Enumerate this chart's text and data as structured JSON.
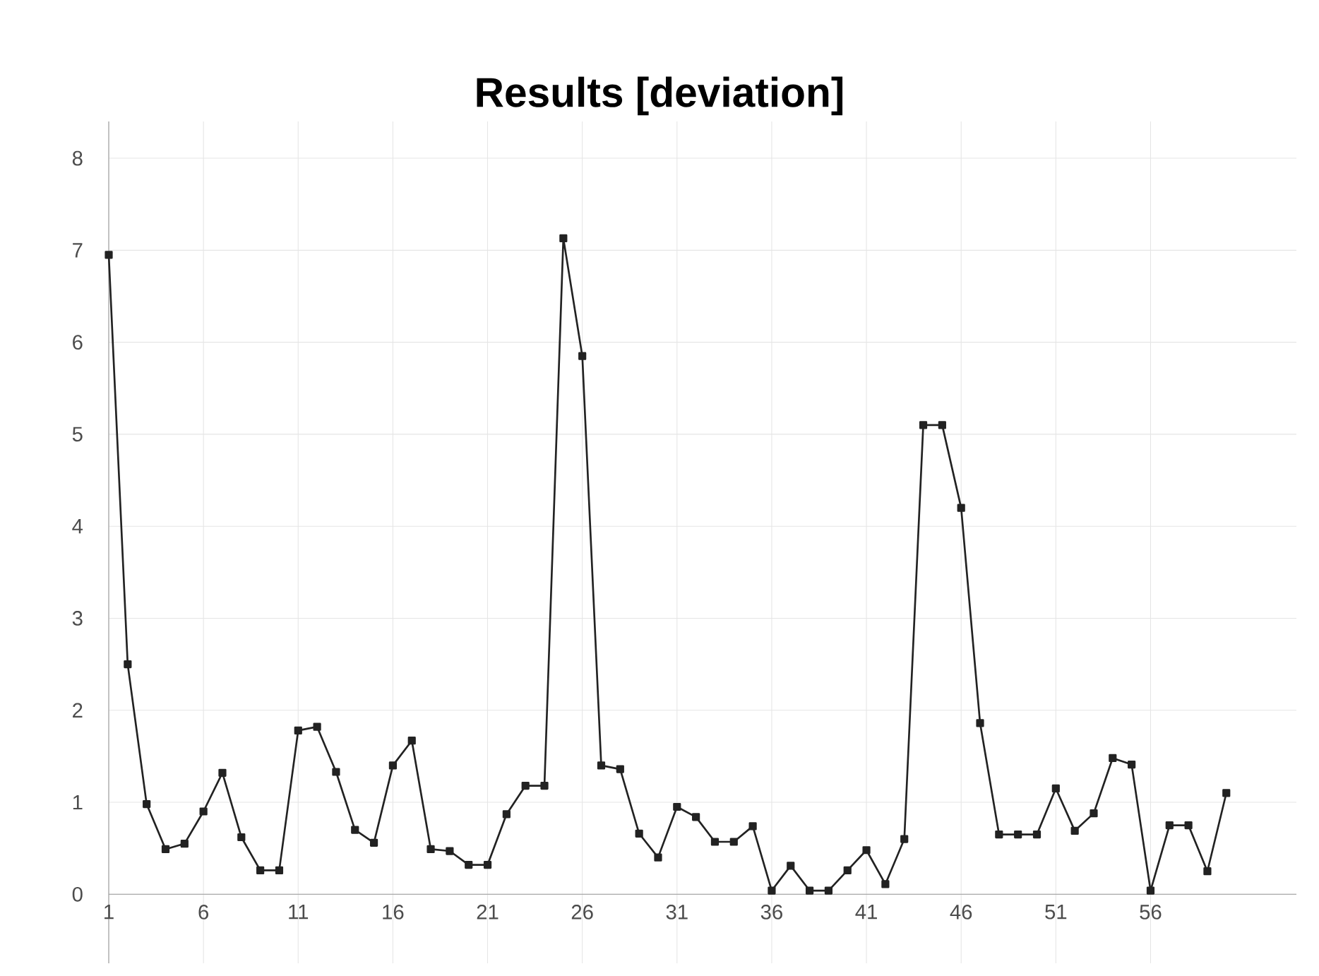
{
  "chart_data": {
    "type": "line",
    "title": "**Results [deviation]**",
    "x": [
      1,
      2,
      3,
      4,
      5,
      6,
      7,
      8,
      9,
      10,
      11,
      12,
      13,
      14,
      15,
      16,
      17,
      18,
      19,
      20,
      21,
      22,
      23,
      24,
      25,
      26,
      27,
      28,
      29,
      30,
      31,
      32,
      33,
      34,
      35,
      36,
      37,
      38,
      39,
      40,
      41,
      42,
      43,
      44,
      45,
      46,
      47,
      48,
      49,
      50,
      51,
      52,
      53,
      54,
      55,
      56,
      57,
      58,
      59,
      60
    ],
    "series": [
      {
        "color": "#222222",
        "values": [
          6.95,
          2.5,
          0.98,
          0.49,
          0.55,
          0.9,
          1.32,
          0.62,
          0.26,
          0.26,
          1.78,
          1.82,
          1.33,
          0.7,
          0.56,
          1.4,
          1.67,
          0.49,
          0.47,
          0.32,
          0.32,
          0.87,
          1.18,
          1.18,
          7.13,
          5.85,
          1.4,
          1.36,
          0.66,
          0.4,
          0.95,
          0.84,
          0.57,
          0.57,
          0.74,
          0.04,
          0.31,
          0.04,
          0.04,
          0.26,
          0.48,
          0.11,
          0.6,
          5.1,
          5.1,
          4.2,
          1.86,
          0.65,
          0.65,
          0.65,
          1.15,
          0.69,
          0.88,
          1.48,
          1.41,
          0.04,
          0.75,
          0.75,
          0.25,
          1.1
        ]
      }
    ],
    "xlim": [
      1,
      63.7
    ],
    "xticks": [
      1,
      6,
      11,
      16,
      21,
      26,
      31,
      36,
      41,
      46,
      51,
      56
    ],
    "ylim": [
      -0.75,
      8.4
    ],
    "yticks": [
      0,
      1,
      2,
      3,
      4,
      5,
      6,
      7,
      8
    ],
    "grid": true,
    "marker": "square",
    "line_style": "solid"
  }
}
